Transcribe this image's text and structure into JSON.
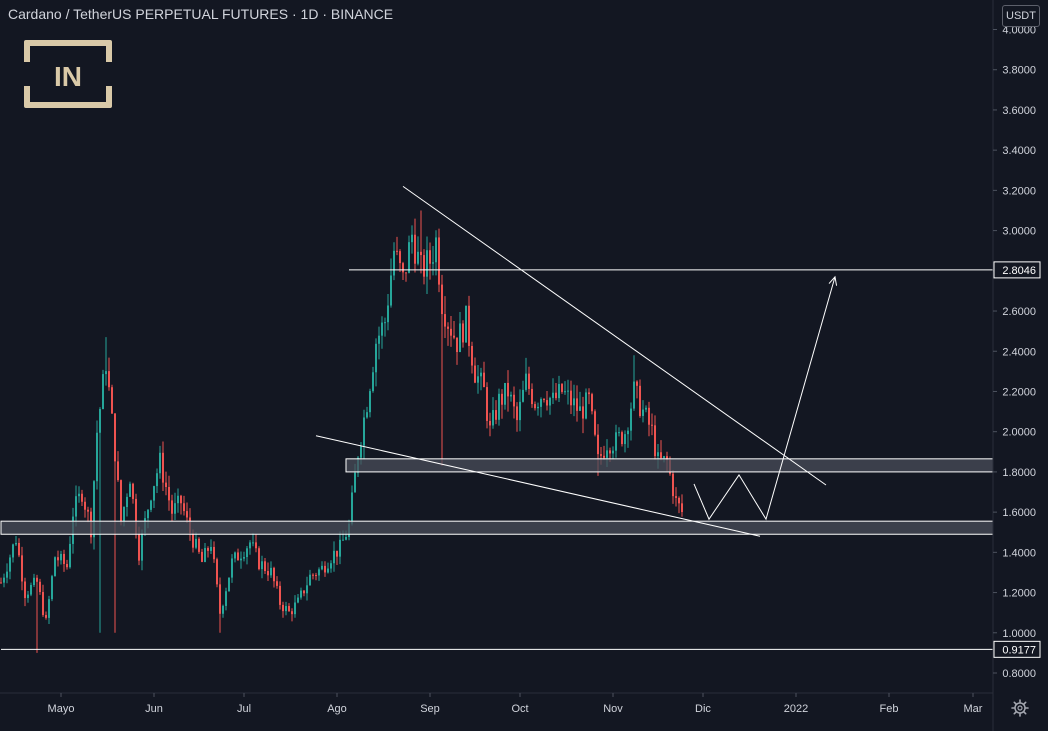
{
  "header": {
    "title": "Cardano / TetherUS PERPETUAL FUTURES · 1D · BINANCE",
    "currency": "USDT"
  },
  "logo": {
    "text": "[IN]"
  },
  "colors": {
    "background": "#131722",
    "grid": "#1e2230",
    "up": "#26a69a",
    "down": "#ef5350",
    "axis_text": "#d1d4dc",
    "drawing": "#ffffff",
    "zone_fill": "#4a4e5a"
  },
  "icons": {
    "settings": "gear-icon"
  },
  "chart_data": {
    "type": "candlestick",
    "title": "Cardano / TetherUS PERPETUAL FUTURES · 1D · BINANCE",
    "ylabel": "USDT",
    "ylim": [
      0.72,
      4.02
    ],
    "y_ticks": [
      "4.0000",
      "3.8000",
      "3.6000",
      "3.4000",
      "3.2000",
      "3.0000",
      "2.8000",
      "2.6000",
      "2.4000",
      "2.2000",
      "2.0000",
      "1.8000",
      "1.6000",
      "1.4000",
      "1.2000",
      "1.0000",
      "0.8000"
    ],
    "y_tick_values": [
      4.0,
      3.8,
      3.6,
      3.4,
      3.2,
      3.0,
      2.8,
      2.6,
      2.4,
      2.2,
      2.0,
      1.8,
      1.6,
      1.4,
      1.2,
      1.0,
      0.8
    ],
    "x_ticks": [
      {
        "label": "Mayo",
        "day": 20
      },
      {
        "label": "Jun",
        "day": 51
      },
      {
        "label": "Jul",
        "day": 81
      },
      {
        "label": "Ago",
        "day": 112
      },
      {
        "label": "Sep",
        "day": 143
      },
      {
        "label": "Oct",
        "day": 173
      },
      {
        "label": "Nov",
        "day": 204
      },
      {
        "label": "Dic",
        "day": 234
      },
      {
        "label": "2022",
        "day": 265
      },
      {
        "label": "Feb",
        "day": 296
      },
      {
        "label": "Mar",
        "day": 324
      }
    ],
    "grid": false,
    "price_labels": [
      {
        "label": "2.8046",
        "value": 2.8046
      },
      {
        "label": "0.9177",
        "value": 0.9177
      }
    ],
    "horizontal_lines": [
      {
        "value": 2.8046,
        "from_day": 116
      },
      {
        "value": 0.9177,
        "from_day": 0
      }
    ],
    "zones": [
      {
        "top": 1.865,
        "bottom": 1.8,
        "from_day": 115
      },
      {
        "top": 1.555,
        "bottom": 1.49,
        "from_day": 0
      }
    ],
    "trendlines": [
      {
        "from": [
          134,
          3.22
        ],
        "to": [
          275,
          1.735
        ]
      },
      {
        "from": [
          105,
          1.98
        ],
        "to": [
          253,
          1.48
        ]
      }
    ],
    "projection_path": [
      [
        231,
        1.74
      ],
      [
        236,
        1.565
      ],
      [
        246,
        1.785
      ],
      [
        255,
        1.565
      ],
      [
        278,
        2.77
      ]
    ],
    "key_points": {
      "may_high": 2.47,
      "may_low": 0.9,
      "july_low": 1.0,
      "sep_high": 3.1,
      "nov_high": 2.38,
      "last_close": 1.6
    },
    "anchors": [
      [
        0,
        1.25
      ],
      [
        5,
        1.47
      ],
      [
        8,
        1.2
      ],
      [
        12,
        1.25
      ],
      [
        15,
        1.05
      ],
      [
        18,
        1.38
      ],
      [
        22,
        1.33
      ],
      [
        24,
        1.6
      ],
      [
        27,
        1.7
      ],
      [
        30,
        1.52
      ],
      [
        32,
        2.0
      ],
      [
        35,
        2.35
      ],
      [
        38,
        1.9
      ],
      [
        40,
        1.55
      ],
      [
        43,
        1.78
      ],
      [
        46,
        1.4
      ],
      [
        50,
        1.7
      ],
      [
        53,
        1.85
      ],
      [
        57,
        1.6
      ],
      [
        60,
        1.65
      ],
      [
        63,
        1.5
      ],
      [
        67,
        1.35
      ],
      [
        70,
        1.45
      ],
      [
        73,
        1.1
      ],
      [
        77,
        1.35
      ],
      [
        80,
        1.4
      ],
      [
        83,
        1.45
      ],
      [
        86,
        1.35
      ],
      [
        90,
        1.3
      ],
      [
        93,
        1.15
      ],
      [
        96,
        1.1
      ],
      [
        99,
        1.15
      ],
      [
        103,
        1.28
      ],
      [
        107,
        1.32
      ],
      [
        110,
        1.38
      ],
      [
        113,
        1.42
      ],
      [
        116,
        1.53
      ],
      [
        119,
        1.9
      ],
      [
        122,
        2.15
      ],
      [
        125,
        2.45
      ],
      [
        128,
        2.55
      ],
      [
        131,
        2.9
      ],
      [
        134,
        2.75
      ],
      [
        137,
        2.98
      ],
      [
        140,
        2.8
      ],
      [
        143,
        2.85
      ],
      [
        145,
        2.95
      ],
      [
        147,
        2.65
      ],
      [
        149,
        2.55
      ],
      [
        152,
        2.45
      ],
      [
        155,
        2.55
      ],
      [
        158,
        2.3
      ],
      [
        161,
        2.2
      ],
      [
        163,
        2.0
      ],
      [
        166,
        2.15
      ],
      [
        169,
        2.2
      ],
      [
        172,
        2.05
      ],
      [
        175,
        2.25
      ],
      [
        178,
        2.15
      ],
      [
        181,
        2.2
      ],
      [
        184,
        2.15
      ],
      [
        187,
        2.2
      ],
      [
        190,
        2.15
      ],
      [
        193,
        2.1
      ],
      [
        196,
        2.15
      ],
      [
        199,
        1.85
      ],
      [
        202,
        1.95
      ],
      [
        205,
        1.95
      ],
      [
        208,
        2.0
      ],
      [
        211,
        2.2
      ],
      [
        214,
        2.1
      ],
      [
        217,
        2.0
      ],
      [
        219,
        1.85
      ],
      [
        222,
        1.85
      ],
      [
        225,
        1.65
      ],
      [
        227,
        1.6
      ]
    ]
  }
}
